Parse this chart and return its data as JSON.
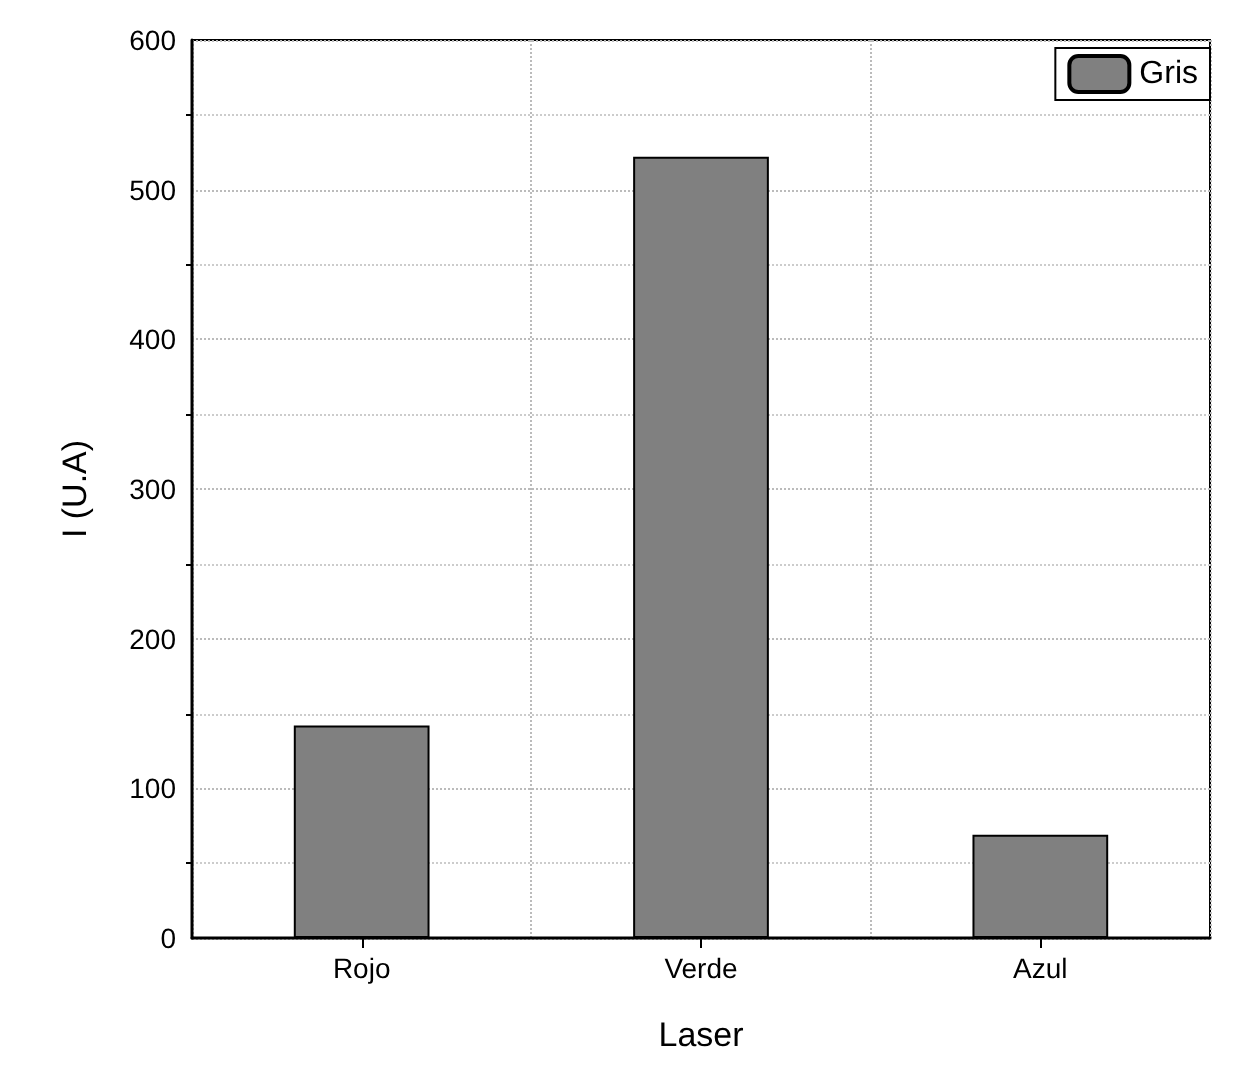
{
  "chart_data": {
    "type": "bar",
    "xlabel": "Laser",
    "ylabel": "I (U.A)",
    "categories": [
      "Rojo",
      "Verde",
      "Azul"
    ],
    "series": [
      {
        "name": "Gris",
        "color": "#808080",
        "values": [
          142,
          522,
          69
        ]
      }
    ],
    "ylim": [
      0,
      600
    ],
    "yticks": [
      0,
      100,
      200,
      300,
      400,
      500,
      600
    ],
    "grid": true,
    "legend": "top right"
  }
}
